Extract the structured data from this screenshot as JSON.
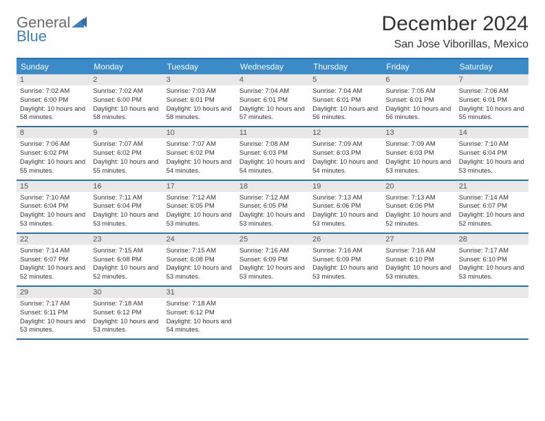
{
  "logo": {
    "text1": "General",
    "text2": "Blue"
  },
  "title": "December 2024",
  "location": "San Jose Viborillas, Mexico",
  "colors": {
    "header_bg": "#3b8bc9",
    "header_text": "#ffffff",
    "border": "#2d6fa8",
    "daynum_bg": "#e8e8e8",
    "logo_gray": "#6b6b6b",
    "logo_blue": "#3b82c4",
    "body_text": "#333333"
  },
  "weekdays": [
    "Sunday",
    "Monday",
    "Tuesday",
    "Wednesday",
    "Thursday",
    "Friday",
    "Saturday"
  ],
  "weeks": [
    [
      {
        "n": "1",
        "sr": "7:02 AM",
        "ss": "6:00 PM",
        "dl": "10 hours and 58 minutes."
      },
      {
        "n": "2",
        "sr": "7:02 AM",
        "ss": "6:00 PM",
        "dl": "10 hours and 58 minutes."
      },
      {
        "n": "3",
        "sr": "7:03 AM",
        "ss": "6:01 PM",
        "dl": "10 hours and 58 minutes."
      },
      {
        "n": "4",
        "sr": "7:04 AM",
        "ss": "6:01 PM",
        "dl": "10 hours and 57 minutes."
      },
      {
        "n": "5",
        "sr": "7:04 AM",
        "ss": "6:01 PM",
        "dl": "10 hours and 56 minutes."
      },
      {
        "n": "6",
        "sr": "7:05 AM",
        "ss": "6:01 PM",
        "dl": "10 hours and 56 minutes."
      },
      {
        "n": "7",
        "sr": "7:06 AM",
        "ss": "6:01 PM",
        "dl": "10 hours and 55 minutes."
      }
    ],
    [
      {
        "n": "8",
        "sr": "7:06 AM",
        "ss": "6:02 PM",
        "dl": "10 hours and 55 minutes."
      },
      {
        "n": "9",
        "sr": "7:07 AM",
        "ss": "6:02 PM",
        "dl": "10 hours and 55 minutes."
      },
      {
        "n": "10",
        "sr": "7:07 AM",
        "ss": "6:02 PM",
        "dl": "10 hours and 54 minutes."
      },
      {
        "n": "11",
        "sr": "7:08 AM",
        "ss": "6:03 PM",
        "dl": "10 hours and 54 minutes."
      },
      {
        "n": "12",
        "sr": "7:09 AM",
        "ss": "6:03 PM",
        "dl": "10 hours and 54 minutes."
      },
      {
        "n": "13",
        "sr": "7:09 AM",
        "ss": "6:03 PM",
        "dl": "10 hours and 53 minutes."
      },
      {
        "n": "14",
        "sr": "7:10 AM",
        "ss": "6:04 PM",
        "dl": "10 hours and 53 minutes."
      }
    ],
    [
      {
        "n": "15",
        "sr": "7:10 AM",
        "ss": "6:04 PM",
        "dl": "10 hours and 53 minutes."
      },
      {
        "n": "16",
        "sr": "7:11 AM",
        "ss": "6:04 PM",
        "dl": "10 hours and 53 minutes."
      },
      {
        "n": "17",
        "sr": "7:12 AM",
        "ss": "6:05 PM",
        "dl": "10 hours and 53 minutes."
      },
      {
        "n": "18",
        "sr": "7:12 AM",
        "ss": "6:05 PM",
        "dl": "10 hours and 53 minutes."
      },
      {
        "n": "19",
        "sr": "7:13 AM",
        "ss": "6:06 PM",
        "dl": "10 hours and 53 minutes."
      },
      {
        "n": "20",
        "sr": "7:13 AM",
        "ss": "6:06 PM",
        "dl": "10 hours and 52 minutes."
      },
      {
        "n": "21",
        "sr": "7:14 AM",
        "ss": "6:07 PM",
        "dl": "10 hours and 52 minutes."
      }
    ],
    [
      {
        "n": "22",
        "sr": "7:14 AM",
        "ss": "6:07 PM",
        "dl": "10 hours and 52 minutes."
      },
      {
        "n": "23",
        "sr": "7:15 AM",
        "ss": "6:08 PM",
        "dl": "10 hours and 52 minutes."
      },
      {
        "n": "24",
        "sr": "7:15 AM",
        "ss": "6:08 PM",
        "dl": "10 hours and 53 minutes."
      },
      {
        "n": "25",
        "sr": "7:16 AM",
        "ss": "6:09 PM",
        "dl": "10 hours and 53 minutes."
      },
      {
        "n": "26",
        "sr": "7:16 AM",
        "ss": "6:09 PM",
        "dl": "10 hours and 53 minutes."
      },
      {
        "n": "27",
        "sr": "7:16 AM",
        "ss": "6:10 PM",
        "dl": "10 hours and 53 minutes."
      },
      {
        "n": "28",
        "sr": "7:17 AM",
        "ss": "6:10 PM",
        "dl": "10 hours and 53 minutes."
      }
    ],
    [
      {
        "n": "29",
        "sr": "7:17 AM",
        "ss": "6:11 PM",
        "dl": "10 hours and 53 minutes."
      },
      {
        "n": "30",
        "sr": "7:18 AM",
        "ss": "6:12 PM",
        "dl": "10 hours and 53 minutes."
      },
      {
        "n": "31",
        "sr": "7:18 AM",
        "ss": "6:12 PM",
        "dl": "10 hours and 54 minutes."
      },
      null,
      null,
      null,
      null
    ]
  ],
  "labels": {
    "sunrise": "Sunrise:",
    "sunset": "Sunset:",
    "daylight": "Daylight:"
  }
}
